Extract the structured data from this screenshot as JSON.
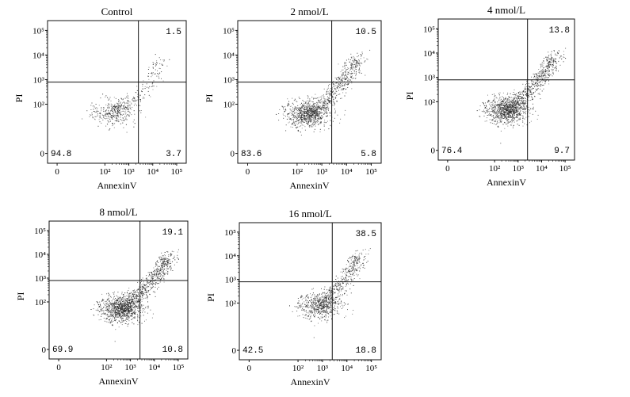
{
  "chart_data": [
    {
      "type": "scatter",
      "title": "Control",
      "xlabel": "AnnexinV",
      "ylabel": "PI",
      "x_ticks": [
        "0",
        "10²",
        "10³",
        "10⁴",
        "10⁵"
      ],
      "y_ticks": [
        "0",
        "10²",
        "10³",
        "10⁴",
        "10⁵"
      ],
      "xscale": "biexponential-log",
      "yscale": "biexponential-log",
      "quadrants": {
        "upper_left": "",
        "upper_right": "1.5",
        "lower_left": "94.8",
        "lower_right": "3.7"
      },
      "density": {
        "events": 520,
        "main_cluster": {
          "x": 2.3,
          "y": 1.65
        },
        "tail": [
          [
            2.6,
            1.85
          ],
          [
            3.2,
            2.2
          ],
          [
            3.9,
            2.9
          ],
          [
            4.3,
            3.8
          ]
        ]
      }
    },
    {
      "type": "scatter",
      "title": "2 nmol/L",
      "xlabel": "AnnexinV",
      "ylabel": "PI",
      "x_ticks": [
        "0",
        "10²",
        "10³",
        "10⁴",
        "10⁵"
      ],
      "y_ticks": [
        "0",
        "10²",
        "10³",
        "10⁴",
        "10⁵"
      ],
      "xscale": "biexponential-log",
      "yscale": "biexponential-log",
      "quadrants": {
        "upper_left": "",
        "upper_right": "10.5",
        "lower_left": "83.6",
        "lower_right": "5.8"
      },
      "density": {
        "events": 1300,
        "main_cluster": {
          "x": 2.4,
          "y": 1.6
        },
        "tail": [
          [
            3.0,
            2.0
          ],
          [
            3.6,
            2.6
          ],
          [
            4.1,
            3.3
          ],
          [
            4.5,
            3.9
          ]
        ]
      }
    },
    {
      "type": "scatter",
      "title": "4 nmol/L",
      "xlabel": "AnnexinV",
      "ylabel": "PI",
      "x_ticks": [
        "0",
        "10²",
        "10³",
        "10⁴",
        "10⁵"
      ],
      "y_ticks": [
        "0",
        "10²",
        "10³",
        "10⁴",
        "10⁵"
      ],
      "xscale": "biexponential-log",
      "yscale": "biexponential-log",
      "quadrants": {
        "upper_left": "",
        "upper_right": "13.8",
        "lower_left": "76.4",
        "lower_right": "9.7"
      },
      "density": {
        "events": 1500,
        "main_cluster": {
          "x": 2.5,
          "y": 1.65
        },
        "tail": [
          [
            3.1,
            2.1
          ],
          [
            3.7,
            2.7
          ],
          [
            4.2,
            3.3
          ],
          [
            4.6,
            3.9
          ]
        ]
      }
    },
    {
      "type": "scatter",
      "title": "8 nmol/L",
      "xlabel": "AnnexinV",
      "ylabel": "PI",
      "x_ticks": [
        "0",
        "10²",
        "10³",
        "10⁴",
        "10⁵"
      ],
      "y_ticks": [
        "0",
        "10²",
        "10³",
        "10⁴",
        "10⁵"
      ],
      "xscale": "biexponential-log",
      "yscale": "biexponential-log",
      "quadrants": {
        "upper_left": "",
        "upper_right": "19.1",
        "lower_left": "69.9",
        "lower_right": "10.8"
      },
      "density": {
        "events": 1600,
        "main_cluster": {
          "x": 2.6,
          "y": 1.7
        },
        "tail": [
          [
            3.2,
            2.2
          ],
          [
            3.8,
            2.8
          ],
          [
            4.3,
            3.4
          ],
          [
            4.6,
            3.9
          ]
        ]
      }
    },
    {
      "type": "scatter",
      "title": "16 nmol/L",
      "xlabel": "AnnexinV",
      "ylabel": "PI",
      "x_ticks": [
        "0",
        "10²",
        "10³",
        "10⁴",
        "10⁵"
      ],
      "y_ticks": [
        "0",
        "10²",
        "10³",
        "10⁴",
        "10⁵"
      ],
      "xscale": "biexponential-log",
      "yscale": "biexponential-log",
      "quadrants": {
        "upper_left": "",
        "upper_right": "38.5",
        "lower_left": "42.5",
        "lower_right": "18.8"
      },
      "density": {
        "events": 950,
        "main_cluster": {
          "x": 2.9,
          "y": 1.9
        },
        "tail": [
          [
            3.4,
            2.4
          ],
          [
            3.9,
            3.0
          ],
          [
            4.3,
            3.6
          ],
          [
            4.5,
            4.0
          ]
        ]
      }
    }
  ]
}
